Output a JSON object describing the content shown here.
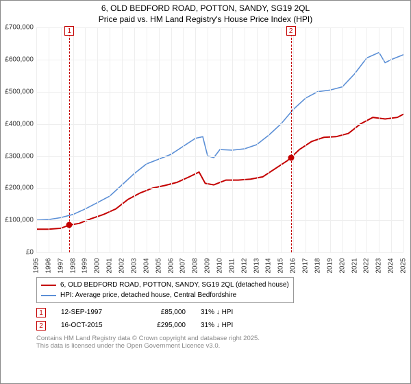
{
  "title_line1": "6, OLD BEDFORD ROAD, POTTON, SANDY, SG19 2QL",
  "title_line2": "Price paid vs. HM Land Registry's House Price Index (HPI)",
  "chart": {
    "type": "line",
    "background_color": "#ffffff",
    "grid_color": "#eeeeee",
    "axis_label_color": "#333333",
    "axis_label_fontsize": 10,
    "xlim": [
      1995,
      2025
    ],
    "ylim": [
      0,
      700000
    ],
    "y_ticks": [
      0,
      100000,
      200000,
      300000,
      400000,
      500000,
      600000,
      700000
    ],
    "y_tick_labels": [
      "£0",
      "£100,000",
      "£200,000",
      "£300,000",
      "£400,000",
      "£500,000",
      "£600,000",
      "£700,000"
    ],
    "x_ticks": [
      1995,
      1996,
      1997,
      1998,
      1999,
      2000,
      2001,
      2002,
      2003,
      2004,
      2005,
      2006,
      2007,
      2008,
      2009,
      2010,
      2011,
      2012,
      2013,
      2014,
      2015,
      2016,
      2017,
      2018,
      2019,
      2020,
      2021,
      2022,
      2023,
      2024,
      2025
    ],
    "series": [
      {
        "name": "price_paid",
        "label": "6, OLD BEDFORD ROAD, POTTON, SANDY, SG19 2QL (detached house)",
        "color": "#c40000",
        "line_width": 2,
        "points": [
          [
            1995.0,
            72000
          ],
          [
            1996.0,
            72000
          ],
          [
            1997.0,
            75000
          ],
          [
            1997.7,
            85000
          ],
          [
            1998.5,
            90000
          ],
          [
            1999.5,
            105000
          ],
          [
            2000.5,
            118000
          ],
          [
            2001.5,
            135000
          ],
          [
            2002.5,
            165000
          ],
          [
            2003.5,
            185000
          ],
          [
            2004.5,
            200000
          ],
          [
            2005.5,
            208000
          ],
          [
            2006.5,
            218000
          ],
          [
            2007.5,
            235000
          ],
          [
            2008.3,
            250000
          ],
          [
            2008.8,
            215000
          ],
          [
            2009.5,
            210000
          ],
          [
            2010.5,
            225000
          ],
          [
            2011.5,
            225000
          ],
          [
            2012.5,
            228000
          ],
          [
            2013.5,
            235000
          ],
          [
            2014.5,
            260000
          ],
          [
            2015.5,
            285000
          ],
          [
            2015.8,
            295000
          ],
          [
            2016.5,
            320000
          ],
          [
            2017.5,
            345000
          ],
          [
            2018.5,
            358000
          ],
          [
            2019.5,
            360000
          ],
          [
            2020.5,
            370000
          ],
          [
            2021.5,
            400000
          ],
          [
            2022.5,
            420000
          ],
          [
            2023.5,
            415000
          ],
          [
            2024.5,
            420000
          ],
          [
            2025.0,
            430000
          ]
        ]
      },
      {
        "name": "hpi",
        "label": "HPI: Average price, detached house, Central Bedfordshire",
        "color": "#5b8fd6",
        "line_width": 1.6,
        "points": [
          [
            1995.0,
            100000
          ],
          [
            1996.0,
            102000
          ],
          [
            1997.0,
            108000
          ],
          [
            1998.0,
            118000
          ],
          [
            1999.0,
            135000
          ],
          [
            2000.0,
            155000
          ],
          [
            2001.0,
            175000
          ],
          [
            2002.0,
            210000
          ],
          [
            2003.0,
            245000
          ],
          [
            2004.0,
            275000
          ],
          [
            2005.0,
            290000
          ],
          [
            2006.0,
            305000
          ],
          [
            2007.0,
            330000
          ],
          [
            2008.0,
            355000
          ],
          [
            2008.6,
            360000
          ],
          [
            2009.0,
            300000
          ],
          [
            2009.5,
            295000
          ],
          [
            2010.0,
            320000
          ],
          [
            2011.0,
            318000
          ],
          [
            2012.0,
            322000
          ],
          [
            2013.0,
            335000
          ],
          [
            2014.0,
            365000
          ],
          [
            2015.0,
            400000
          ],
          [
            2016.0,
            445000
          ],
          [
            2017.0,
            480000
          ],
          [
            2018.0,
            500000
          ],
          [
            2019.0,
            505000
          ],
          [
            2020.0,
            515000
          ],
          [
            2021.0,
            555000
          ],
          [
            2022.0,
            605000
          ],
          [
            2023.0,
            622000
          ],
          [
            2023.5,
            590000
          ],
          [
            2024.0,
            600000
          ],
          [
            2025.0,
            615000
          ]
        ]
      }
    ],
    "markers": [
      {
        "id": "1",
        "x": 1997.7,
        "color": "#c40000",
        "dot_y": 85000
      },
      {
        "id": "2",
        "x": 2015.8,
        "color": "#c40000",
        "dot_y": 295000
      }
    ]
  },
  "legend": {
    "border_color": "#999999",
    "fontsize": 10
  },
  "sales": [
    {
      "id": "1",
      "date": "12-SEP-1997",
      "price": "£85,000",
      "delta": "31% ↓ HPI",
      "badge_color": "#c40000"
    },
    {
      "id": "2",
      "date": "16-OCT-2015",
      "price": "£295,000",
      "delta": "31% ↓ HPI",
      "badge_color": "#c40000"
    }
  ],
  "attribution_line1": "Contains HM Land Registry data © Crown copyright and database right 2025.",
  "attribution_line2": "This data is licensed under the Open Government Licence v3.0."
}
